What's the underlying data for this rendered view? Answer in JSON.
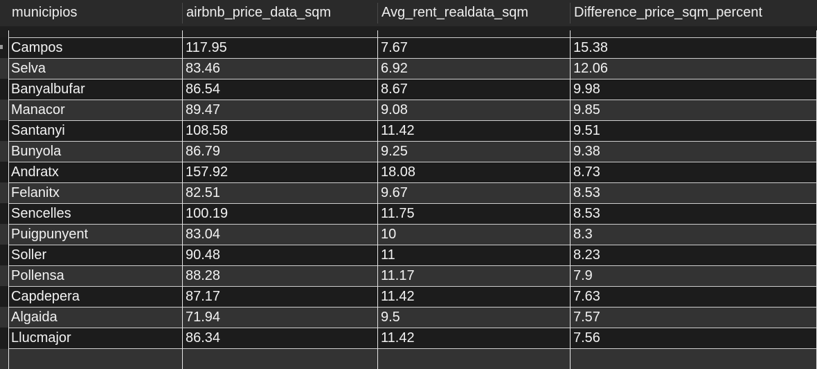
{
  "table": {
    "columns": [
      "municipios",
      "airbnb_price_data_sqm",
      "Avg_rent_realdata_sqm",
      "Difference_price_sqm_percent"
    ],
    "rows": [
      [
        "Campos",
        "117.95",
        "7.67",
        "15.38"
      ],
      [
        "Selva",
        "83.46",
        "6.92",
        "12.06"
      ],
      [
        "Banyalbufar",
        "86.54",
        "8.67",
        "9.98"
      ],
      [
        "Manacor",
        "89.47",
        "9.08",
        "9.85"
      ],
      [
        "Santanyi",
        "108.58",
        "11.42",
        "9.51"
      ],
      [
        "Bunyola",
        "86.79",
        "9.25",
        "9.38"
      ],
      [
        "Andratx",
        "157.92",
        "18.08",
        "8.73"
      ],
      [
        "Felanitx",
        "82.51",
        "9.67",
        "8.53"
      ],
      [
        "Sencelles",
        "100.19",
        "11.75",
        "8.53"
      ],
      [
        "Puigpunyent",
        "83.04",
        "10",
        "8.3"
      ],
      [
        "Soller",
        "90.48",
        "11",
        "8.23"
      ],
      [
        "Pollensa",
        "88.28",
        "11.17",
        "7.9"
      ],
      [
        "Capdepera",
        "87.17",
        "11.42",
        "7.63"
      ],
      [
        "Algaida",
        "71.94",
        "9.5",
        "7.57"
      ],
      [
        "Llucmajor",
        "86.34",
        "11.42",
        "7.56"
      ]
    ]
  },
  "colors": {
    "background": "#1f1f1f",
    "row_dark": "#1c1c1c",
    "row_light": "#333333",
    "text": "#f2f2f2",
    "grid_line": "#e6e6e6"
  }
}
